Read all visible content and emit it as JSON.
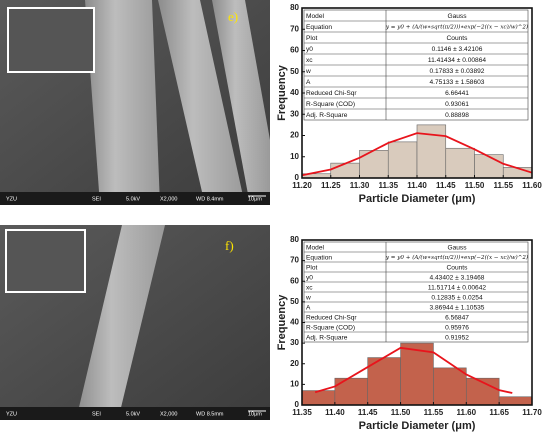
{
  "images": [
    {
      "panel_label": "e)",
      "info": [
        "YZU",
        "SEI",
        "5.0kV",
        "X2,000",
        "WD 8.4mm",
        "10μm"
      ]
    },
    {
      "panel_label": "f)",
      "info": [
        "YZU",
        "SEI",
        "5.0kV",
        "X2,000",
        "WD 8.5mm",
        "10μm"
      ]
    }
  ],
  "chart_data": [
    {
      "type": "histogram",
      "xlabel": "Particle Diameter (μm)",
      "ylabel": "Frequency",
      "bins": [
        11.2,
        11.25,
        11.3,
        11.35,
        11.4,
        11.45,
        11.5,
        11.55,
        11.6
      ],
      "values": [
        2,
        7,
        13,
        17,
        25,
        14,
        11,
        5
      ],
      "color": "#d9cbbd",
      "xlim": [
        11.2,
        11.6
      ],
      "ylim": [
        0,
        80
      ],
      "xticks": [
        {
          "value": 11.2,
          "label": "11.20"
        },
        {
          "value": 11.25,
          "label": "11.25"
        },
        {
          "value": 11.3,
          "label": "11.30"
        },
        {
          "value": 11.35,
          "label": "11.35"
        },
        {
          "value": 11.4,
          "label": "11.40"
        },
        {
          "value": 11.45,
          "label": "11.45"
        },
        {
          "value": 11.5,
          "label": "11.50"
        },
        {
          "value": 11.55,
          "label": "11.55"
        },
        {
          "value": 11.6,
          "label": "11.60"
        }
      ],
      "yticks": [
        0,
        10,
        20,
        30,
        40,
        50,
        60,
        70,
        80
      ],
      "fit_line": {
        "color": "#e8141c",
        "x": [
          11.2,
          11.25,
          11.3,
          11.35,
          11.4,
          11.45,
          11.5,
          11.55,
          11.6
        ],
        "values": [
          1.3,
          4.0,
          9.5,
          16.5,
          21.1,
          19.7,
          13.5,
          6.7,
          2.5
        ]
      },
      "table": {
        "rows": [
          [
            "Model",
            "Gauss"
          ],
          [
            "Equation",
            "y = y0 + (A/(w∗sqrt(π/2)))∗exp(−2((x − xc)/w)^2)"
          ],
          [
            "Plot",
            "Counts"
          ],
          [
            "y0",
            "0.1146 ± 3.42106"
          ],
          [
            "xc",
            "11.41434 ± 0.00864"
          ],
          [
            "w",
            "0.17833 ± 0.03892"
          ],
          [
            "A",
            "4.75133 ± 1.58603"
          ],
          [
            "Reduced Chi-Sqr",
            "6.66441"
          ],
          [
            "R-Square (COD)",
            "0.93061"
          ],
          [
            "Adj. R-Square",
            "0.88898"
          ]
        ]
      }
    },
    {
      "type": "histogram",
      "xlabel": "Particle Diameter (μm)",
      "ylabel": "Frequency",
      "bins": [
        11.35,
        11.4,
        11.45,
        11.5,
        11.55,
        11.6,
        11.65,
        11.7
      ],
      "values": [
        7,
        13,
        23,
        30,
        18,
        13,
        4
      ],
      "color": "#c3624c",
      "xlim": [
        11.35,
        11.7
      ],
      "ylim": [
        0,
        80
      ],
      "xticks": [
        {
          "value": 11.35,
          "label": "11.35"
        },
        {
          "value": 11.4,
          "label": "11.40"
        },
        {
          "value": 11.45,
          "label": "11.45"
        },
        {
          "value": 11.5,
          "label": "11.50"
        },
        {
          "value": 11.55,
          "label": "11.55"
        },
        {
          "value": 11.6,
          "label": "11.60"
        },
        {
          "value": 11.65,
          "label": "11.65"
        },
        {
          "value": 11.7,
          "label": "11.70"
        }
      ],
      "yticks": [
        0,
        10,
        20,
        30,
        40,
        50,
        60,
        70,
        80
      ],
      "fit_line": {
        "color": "#e8141c",
        "x": [
          11.37,
          11.4,
          11.45,
          11.5,
          11.55,
          11.6,
          11.65,
          11.67
        ],
        "values": [
          6.2,
          9.0,
          18.4,
          27.7,
          25.5,
          14.8,
          7.2,
          5.8
        ]
      },
      "table": {
        "rows": [
          [
            "Model",
            "Gauss"
          ],
          [
            "Equation",
            "y = y0 + (A/(w∗sqrt(π/2)))∗exp(−2((x − xc)/w)^2)"
          ],
          [
            "Plot",
            "Counts"
          ],
          [
            "y0",
            "4.43402 ± 3.19468"
          ],
          [
            "xc",
            "11.51714 ± 0.00642"
          ],
          [
            "w",
            "0.12835 ± 0.0254"
          ],
          [
            "A",
            "3.86944 ± 1.10535"
          ],
          [
            "Reduced Chi-Sqr",
            "6.56847"
          ],
          [
            "R-Square (COD)",
            "0.95976"
          ],
          [
            "Adj. R-Square",
            "0.91952"
          ]
        ]
      }
    }
  ]
}
